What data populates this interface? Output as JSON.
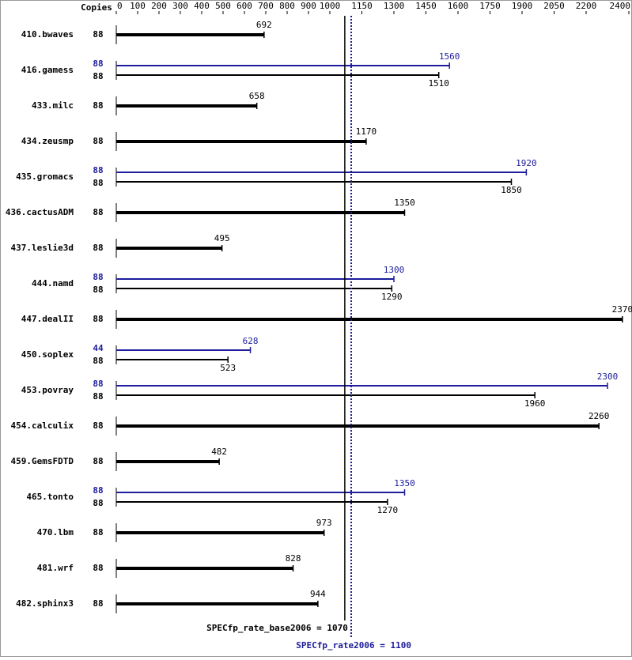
{
  "chart_data": {
    "type": "spec-bar",
    "copies_header": "Copies",
    "categories": [
      "410.bwaves",
      "416.gamess",
      "433.milc",
      "434.zeusmp",
      "435.gromacs",
      "436.cactusADM",
      "437.leslie3d",
      "444.namd",
      "447.dealII",
      "450.soplex",
      "453.povray",
      "454.calculix",
      "459.GemsFDTD",
      "465.tonto",
      "470.lbm",
      "481.wrf",
      "482.sphinx3"
    ],
    "series": [
      {
        "color": "#000000",
        "copies": [
          88,
          88,
          88,
          88,
          88,
          88,
          88,
          88,
          88,
          88,
          88,
          88,
          88,
          88,
          88,
          88,
          88
        ],
        "values": [
          692,
          1510,
          658,
          1170,
          1850,
          1350,
          495,
          1290,
          2370,
          523,
          1960,
          2260,
          482,
          1270,
          973,
          828,
          944
        ]
      },
      {
        "color": "#1c1c9c",
        "copies": [
          null,
          88,
          null,
          null,
          88,
          null,
          null,
          88,
          null,
          44,
          88,
          null,
          null,
          88,
          null,
          null,
          null
        ],
        "values": [
          null,
          1560,
          null,
          null,
          1920,
          null,
          null,
          1300,
          null,
          628,
          2300,
          null,
          null,
          1350,
          null,
          null,
          null
        ]
      }
    ],
    "xlim": [
      0,
      2400
    ],
    "xticks": [
      0,
      100,
      200,
      300,
      400,
      500,
      600,
      700,
      800,
      900,
      1000,
      1150,
      1300,
      1450,
      1600,
      1750,
      1900,
      2050,
      2200,
      2400
    ],
    "reference_lines": [
      {
        "value": 1070,
        "label": "SPECfp_rate_base2006 = 1070",
        "color": "#000000",
        "style": "solid"
      },
      {
        "value": 1100,
        "label": "SPECfp_rate2006 = 1100",
        "color": "#1c1c9c",
        "style": "dotted"
      }
    ]
  }
}
